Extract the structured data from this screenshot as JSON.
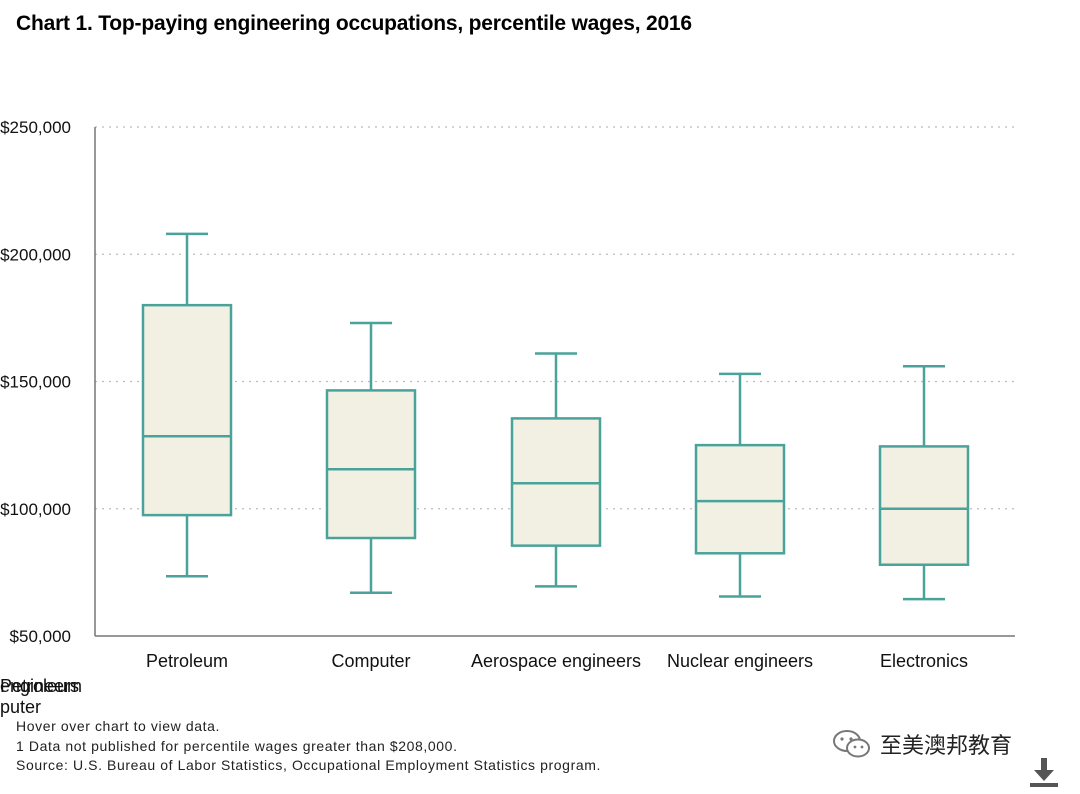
{
  "chart_data": {
    "type": "boxplot",
    "title": "Chart 1. Top-paying engineering occupations, percentile wages, 2016",
    "xlabel": "",
    "ylabel": "",
    "ylim": [
      50000,
      250000
    ],
    "yticks": [
      50000,
      100000,
      150000,
      200000,
      250000
    ],
    "ytick_labels": [
      "$50,000",
      "$100,000",
      "$150,000",
      "$200,000",
      "$250,000"
    ],
    "grid": true,
    "categories": [
      "Petroleum",
      "Computer",
      "Aerospace engineers",
      "Nuclear engineers",
      "Electronics"
    ],
    "boxes": [
      {
        "low": 73500,
        "q1": 97500,
        "median": 128500,
        "q3": 180000,
        "high": 208000
      },
      {
        "low": 67000,
        "q1": 88500,
        "median": 115500,
        "q3": 146500,
        "high": 173000
      },
      {
        "low": 69500,
        "q1": 85500,
        "median": 110000,
        "q3": 135500,
        "high": 161000
      },
      {
        "low": 65500,
        "q1": 82500,
        "median": 103000,
        "q3": 125000,
        "high": 153000
      },
      {
        "low": 64500,
        "q1": 78000,
        "median": 100000,
        "q3": 124500,
        "high": 156000
      }
    ],
    "colors": {
      "stroke": "#4aa39a",
      "fill": "#f1f0e2",
      "grid": "#bcbcbc",
      "axis": "#777777"
    }
  },
  "overlap_labels": [
    "engineers",
    "Petroleum",
    "puter"
  ],
  "footnotes": {
    "hover": "Hover over chart to view data.",
    "note1": "1 Data not published for percentile wages greater than $208,000.",
    "source": "Source: U.S. Bureau of Labor Statistics, Occupational Employment Statistics program."
  },
  "branding": {
    "text": "至美澳邦教育",
    "icon": "wechat-icon"
  },
  "download_icon": "download-icon"
}
